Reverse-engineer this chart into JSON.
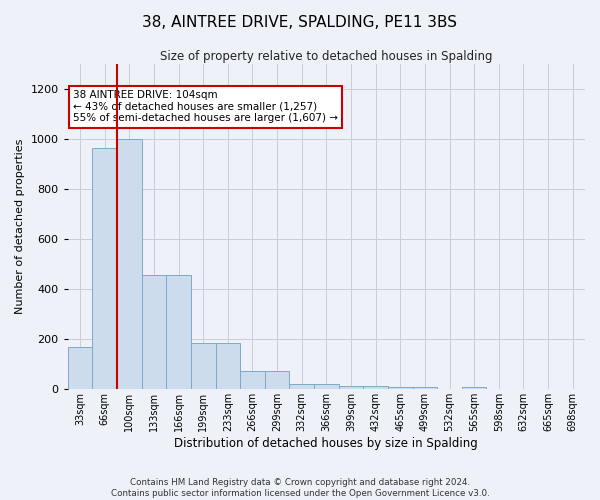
{
  "title": "38, AINTREE DRIVE, SPALDING, PE11 3BS",
  "subtitle": "Size of property relative to detached houses in Spalding",
  "xlabel": "Distribution of detached houses by size in Spalding",
  "ylabel": "Number of detached properties",
  "footnote1": "Contains HM Land Registry data © Crown copyright and database right 2024.",
  "footnote2": "Contains public sector information licensed under the Open Government Licence v3.0.",
  "annotation_line1": "38 AINTREE DRIVE: 104sqm",
  "annotation_line2": "← 43% of detached houses are smaller (1,257)",
  "annotation_line3": "55% of semi-detached houses are larger (1,607) →",
  "property_bin_index": 2,
  "bar_color": "#ccdcec",
  "bar_edge_color": "#7baaca",
  "highlight_edge_color": "#cc0000",
  "background_color": "#eef2f8",
  "grid_color": "#c8ccd4",
  "categories": [
    "33sqm",
    "66sqm",
    "100sqm",
    "133sqm",
    "166sqm",
    "199sqm",
    "233sqm",
    "266sqm",
    "299sqm",
    "332sqm",
    "366sqm",
    "399sqm",
    "432sqm",
    "465sqm",
    "499sqm",
    "532sqm",
    "565sqm",
    "598sqm",
    "632sqm",
    "665sqm",
    "698sqm"
  ],
  "values": [
    170,
    965,
    1000,
    455,
    455,
    185,
    185,
    75,
    75,
    20,
    20,
    15,
    15,
    10,
    10,
    0,
    10,
    0,
    0,
    0,
    0
  ],
  "ylim": [
    0,
    1300
  ],
  "yticks": [
    0,
    200,
    400,
    600,
    800,
    1000,
    1200
  ]
}
